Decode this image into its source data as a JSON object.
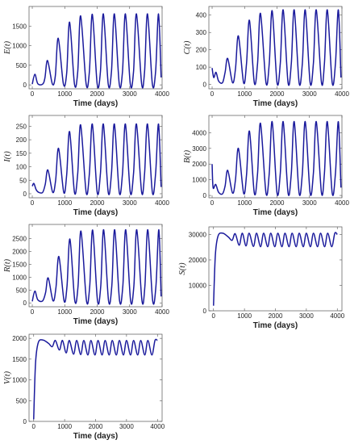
{
  "chart_data": [
    {
      "type": "line",
      "ylabel": "E(t)",
      "xlabel": "Time (days)",
      "xlim": [
        -100,
        4000
      ],
      "ylim": [
        -100,
        2000
      ],
      "xticks": [
        0,
        1000,
        2000,
        3000,
        4000
      ],
      "yticks": [
        0,
        500,
        1000,
        1500
      ],
      "x": [
        0,
        80,
        170,
        320,
        390,
        470,
        620,
        710,
        800,
        960,
        1060,
        1150,
        1300,
        1400,
        1490,
        1660,
        1760,
        1850,
        2000,
        2100,
        2190,
        2340,
        2440,
        2530,
        2680,
        2780,
        2870,
        3020,
        3120,
        3210,
        3370,
        3460,
        3550,
        3700,
        3800,
        3890,
        3970
      ],
      "y": [
        20,
        270,
        30,
        20,
        180,
        620,
        20,
        230,
        1190,
        20,
        300,
        1600,
        20,
        330,
        1760,
        20,
        340,
        1800,
        20,
        340,
        1810,
        20,
        340,
        1810,
        20,
        340,
        1810,
        20,
        340,
        1810,
        20,
        340,
        1810,
        20,
        340,
        1810,
        190
      ]
    },
    {
      "type": "line",
      "ylabel": "C(t)",
      "xlabel": "Time (days)",
      "xlim": [
        -100,
        4000
      ],
      "ylim": [
        -25,
        450
      ],
      "xticks": [
        0,
        1000,
        2000,
        3000,
        4000
      ],
      "yticks": [
        0,
        100,
        200,
        300,
        400
      ],
      "x": [
        0,
        50,
        120,
        200,
        320,
        400,
        480,
        630,
        720,
        810,
        970,
        1060,
        1150,
        1300,
        1400,
        1490,
        1660,
        1760,
        1850,
        2000,
        2100,
        2190,
        2340,
        2440,
        2530,
        2680,
        2780,
        2870,
        3020,
        3120,
        3210,
        3370,
        3460,
        3550,
        3700,
        3800,
        3890,
        3970
      ],
      "y": [
        95,
        40,
        70,
        20,
        10,
        70,
        150,
        10,
        90,
        280,
        10,
        120,
        370,
        10,
        120,
        410,
        10,
        120,
        425,
        10,
        120,
        430,
        10,
        120,
        430,
        10,
        120,
        430,
        10,
        120,
        430,
        10,
        120,
        430,
        10,
        120,
        430,
        40
      ]
    },
    {
      "type": "line",
      "ylabel": "I(t)",
      "xlabel": "Time (days)",
      "xlim": [
        -100,
        4000
      ],
      "ylim": [
        -15,
        290
      ],
      "xticks": [
        0,
        1000,
        2000,
        3000,
        4000
      ],
      "yticks": [
        0,
        50,
        100,
        150,
        200,
        250
      ],
      "x": [
        0,
        50,
        120,
        200,
        320,
        400,
        480,
        630,
        720,
        810,
        970,
        1060,
        1150,
        1300,
        1400,
        1490,
        1660,
        1760,
        1850,
        2000,
        2100,
        2190,
        2340,
        2440,
        2530,
        2680,
        2780,
        2870,
        3020,
        3120,
        3210,
        3370,
        3460,
        3550,
        3700,
        3800,
        3890,
        3970
      ],
      "y": [
        28,
        38,
        15,
        5,
        5,
        35,
        88,
        5,
        50,
        168,
        5,
        70,
        230,
        5,
        75,
        255,
        5,
        75,
        258,
        5,
        75,
        258,
        5,
        75,
        258,
        5,
        75,
        258,
        5,
        75,
        258,
        5,
        75,
        258,
        5,
        75,
        258,
        25
      ]
    },
    {
      "type": "line",
      "ylabel": "B(t)",
      "xlabel": "Time (days)",
      "xlim": [
        -100,
        4000
      ],
      "ylim": [
        -150,
        5100
      ],
      "xticks": [
        0,
        1000,
        2000,
        3000,
        4000
      ],
      "yticks": [
        0,
        1000,
        2000,
        3000,
        4000
      ],
      "x": [
        0,
        30,
        110,
        200,
        320,
        400,
        480,
        630,
        720,
        810,
        970,
        1060,
        1150,
        1300,
        1400,
        1490,
        1660,
        1760,
        1850,
        2000,
        2100,
        2190,
        2340,
        2440,
        2530,
        2680,
        2780,
        2870,
        3020,
        3120,
        3210,
        3370,
        3460,
        3550,
        3700,
        3800,
        3890,
        3970
      ],
      "y": [
        2000,
        500,
        700,
        200,
        100,
        600,
        1600,
        150,
        1000,
        3000,
        150,
        1300,
        4100,
        150,
        1400,
        4600,
        150,
        1400,
        4700,
        150,
        1400,
        4700,
        150,
        1400,
        4700,
        150,
        1400,
        4700,
        150,
        1400,
        4700,
        150,
        1400,
        4700,
        150,
        1400,
        4700,
        500
      ]
    },
    {
      "type": "line",
      "ylabel": "R(t)",
      "xlabel": "Time (days)",
      "xlim": [
        -100,
        4000
      ],
      "ylim": [
        -150,
        3050
      ],
      "xticks": [
        0,
        1000,
        2000,
        3000,
        4000
      ],
      "yticks": [
        0,
        500,
        1000,
        1500,
        2000,
        2500
      ],
      "x": [
        0,
        80,
        170,
        320,
        410,
        490,
        640,
        730,
        820,
        980,
        1070,
        1160,
        1310,
        1410,
        1500,
        1670,
        1770,
        1860,
        2010,
        2110,
        2200,
        2350,
        2450,
        2540,
        2690,
        2790,
        2880,
        3030,
        3130,
        3220,
        3380,
        3470,
        3560,
        3710,
        3810,
        3900,
        3970
      ],
      "y": [
        60,
        460,
        120,
        80,
        400,
        970,
        80,
        600,
        1800,
        80,
        650,
        2480,
        80,
        650,
        2790,
        80,
        650,
        2830,
        80,
        650,
        2840,
        80,
        650,
        2840,
        80,
        650,
        2840,
        80,
        650,
        2840,
        80,
        650,
        2840,
        80,
        650,
        2840,
        250
      ]
    },
    {
      "type": "line",
      "ylabel": "S(t)",
      "xlabel": "Time (days)",
      "xlim": [
        -150,
        4150
      ],
      "ylim": [
        0,
        33000
      ],
      "xticks": [
        0,
        1000,
        2000,
        3000,
        4000
      ],
      "yticks": [
        0,
        10000,
        20000,
        30000
      ],
      "x": [
        0,
        60,
        150,
        300,
        480,
        600,
        700,
        830,
        930,
        1050,
        1150,
        1290,
        1390,
        1520,
        1620,
        1750,
        1850,
        1980,
        2080,
        2210,
        2310,
        2440,
        2540,
        2670,
        2770,
        2900,
        3000,
        3130,
        3230,
        3360,
        3460,
        3590,
        3690,
        3820,
        3920,
        4000
      ],
      "y": [
        2000,
        22000,
        29500,
        30500,
        29000,
        27700,
        30300,
        25800,
        30500,
        25500,
        30500,
        25300,
        30500,
        25200,
        30500,
        25200,
        30500,
        25200,
        30500,
        25200,
        30500,
        25200,
        30500,
        25200,
        30500,
        25200,
        30500,
        25200,
        30500,
        25200,
        30500,
        25200,
        30500,
        25200,
        30500,
        30000
      ]
    },
    {
      "type": "line",
      "ylabel": "V(t)",
      "xlabel": "Time (days)",
      "xlim": [
        -150,
        4150
      ],
      "ylim": [
        0,
        2100
      ],
      "xticks": [
        0,
        1000,
        2000,
        3000,
        4000
      ],
      "yticks": [
        0,
        500,
        1000,
        1500,
        2000
      ],
      "x": [
        0,
        60,
        150,
        300,
        480,
        600,
        700,
        830,
        930,
        1050,
        1150,
        1290,
        1390,
        1520,
        1620,
        1750,
        1850,
        1980,
        2080,
        2210,
        2310,
        2440,
        2540,
        2670,
        2770,
        2900,
        3000,
        3130,
        3230,
        3360,
        3460,
        3590,
        3690,
        3820,
        3920,
        4000
      ],
      "y": [
        50,
        1400,
        1900,
        1960,
        1880,
        1800,
        1950,
        1720,
        1950,
        1650,
        1950,
        1620,
        1950,
        1610,
        1950,
        1600,
        1950,
        1600,
        1950,
        1600,
        1950,
        1600,
        1950,
        1600,
        1950,
        1600,
        1950,
        1600,
        1950,
        1600,
        1950,
        1600,
        1950,
        1600,
        1950,
        1950
      ]
    }
  ]
}
